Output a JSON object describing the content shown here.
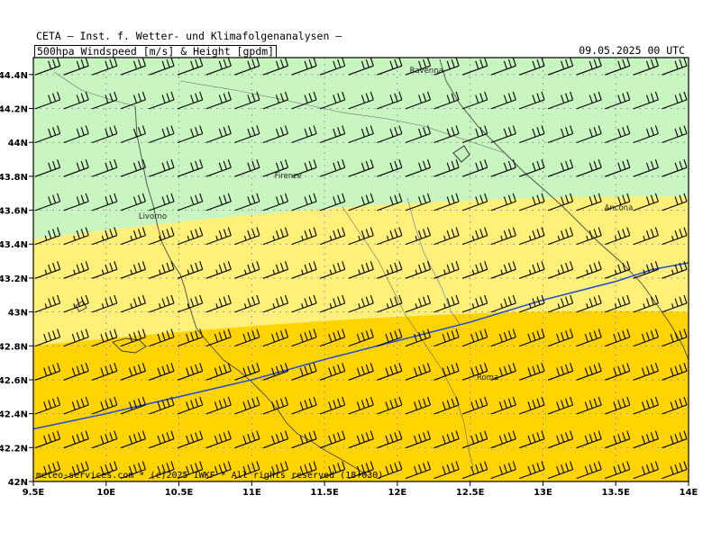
{
  "header": {
    "institute": "CETA — Inst. f. Wetter- und Klimafolgenanalysen —",
    "product": "500hpa_Windspeed_[m/s]_&_Height_[gpdm]",
    "valid_time": "09.05.2025 00 UTC"
  },
  "footer": {
    "credit": "meteo-services.com * (c)2025 IWKF * All rights reserved (18+030)"
  },
  "colors": {
    "band_green": "#c8f5c0",
    "band_light_yellow": "#fff07a",
    "band_gold": "#ffd400",
    "contour": "#2a4fd0",
    "barb": "#000000",
    "coast": "#4a4a4a",
    "grid": "#9a9aaa"
  },
  "chart_data": {
    "type": "map",
    "projection": "lat-lon",
    "x_axis": {
      "range": [
        9.5,
        14.0
      ],
      "ticks": [
        9.5,
        10.0,
        10.5,
        11.0,
        11.5,
        12.0,
        12.5,
        13.0,
        13.5,
        14.0
      ],
      "tick_labels": [
        "9.5E",
        "10E",
        "10.5E",
        "11E",
        "11.5E",
        "12E",
        "12.5E",
        "13E",
        "13.5E",
        "14E"
      ]
    },
    "y_axis": {
      "range": [
        42.0,
        44.5
      ],
      "ticks": [
        42.0,
        42.2,
        42.4,
        42.6,
        42.8,
        43.0,
        43.2,
        43.4,
        43.6,
        43.8,
        44.0,
        44.2,
        44.4
      ],
      "tick_labels": [
        "42N",
        "42.2N",
        "42.4N",
        "42.6N",
        "42.8N",
        "43N",
        "43.2N",
        "43.4N",
        "43.6N",
        "43.8N",
        "44N",
        "44.2N",
        "44.4N"
      ]
    },
    "grid": true,
    "wind_speed_bands": [
      {
        "name": "green",
        "boundary_lat_west": 43.43,
        "boundary_lat_east": 43.68
      },
      {
        "name": "light_yellow",
        "boundary_lat_west": 42.8,
        "boundary_lat_east": 43.0
      },
      {
        "name": "gold",
        "boundary_lat_west": 42.0,
        "boundary_lat_east": 42.0
      }
    ],
    "height_contour": [
      [
        9.5,
        42.31
      ],
      [
        10.0,
        42.4
      ],
      [
        10.5,
        42.5
      ],
      [
        11.0,
        42.6
      ],
      [
        11.5,
        42.72
      ],
      [
        12.0,
        42.83
      ],
      [
        12.5,
        42.94
      ],
      [
        13.0,
        43.07
      ],
      [
        13.5,
        43.18
      ],
      [
        13.75,
        43.25
      ],
      [
        14.0,
        43.29
      ]
    ],
    "cities": [
      {
        "name": "Ravenna",
        "lon": 12.2,
        "lat": 44.41
      },
      {
        "name": "Firenze",
        "lon": 11.25,
        "lat": 43.79
      },
      {
        "name": "Livorno",
        "lon": 10.32,
        "lat": 43.55
      },
      {
        "name": "Ancona",
        "lon": 13.52,
        "lat": 43.6
      },
      {
        "name": "Roma",
        "lon": 12.62,
        "lat": 42.6
      }
    ],
    "wind_barbs": {
      "rows": [
        {
          "lat": 44.43,
          "full_flags": 3,
          "half_flags": 0
        },
        {
          "lat": 44.23,
          "full_flags": 3,
          "half_flags": 0
        },
        {
          "lat": 44.03,
          "full_flags": 3,
          "half_flags": 0
        },
        {
          "lat": 43.83,
          "full_flags": 3,
          "half_flags": 0
        },
        {
          "lat": 43.63,
          "full_flags": 3,
          "half_flags": 0
        },
        {
          "lat": 43.43,
          "full_flags": 3,
          "half_flags": 1
        },
        {
          "lat": 43.23,
          "full_flags": 3,
          "half_flags": 1
        },
        {
          "lat": 43.03,
          "full_flags": 3,
          "half_flags": 1
        },
        {
          "lat": 42.83,
          "full_flags": 4,
          "half_flags": 0
        },
        {
          "lat": 42.63,
          "full_flags": 4,
          "half_flags": 0
        },
        {
          "lat": 42.43,
          "full_flags": 4,
          "half_flags": 0
        },
        {
          "lat": 42.23,
          "full_flags": 4,
          "half_flags": 0
        },
        {
          "lat": 42.05,
          "full_flags": 4,
          "half_flags": 0
        }
      ],
      "columns": 23,
      "direction": "W-SW"
    }
  }
}
